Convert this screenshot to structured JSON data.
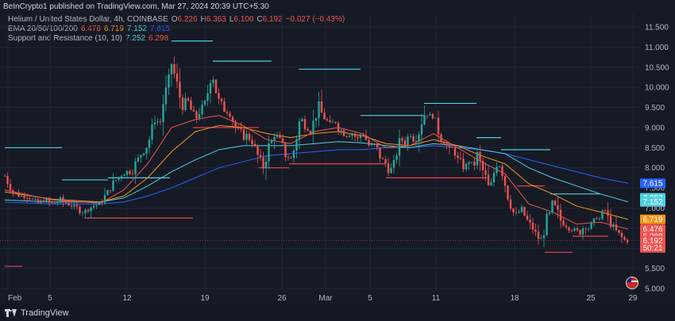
{
  "header": {
    "published": "BeInCrypto1 published on TradingView.com, Mar 27, 2024 20:39 UTC+5:30"
  },
  "legend": {
    "symbol": "Helium / United States Dollar, 4h, COINBASE",
    "o_label": "O",
    "o_value": "6.226",
    "h_label": "H",
    "h_value": "6.363",
    "l_label": "L",
    "l_value": "6.100",
    "c_label": "C",
    "c_value": "6.192",
    "change": "−0.027 (−0.43%)",
    "ema_label": "EMA 20/50/100/200",
    "ema20": "6.476",
    "ema50": "6.719",
    "ema100": "7.152",
    "ema200": "7.615",
    "sr_label": "Support and Resistance (10, 10)",
    "sr_res": "7.252",
    "sr_sup": "6.298"
  },
  "footer": {
    "brand": "TradingView"
  },
  "colors": {
    "up": "#26a69a",
    "down": "#ef5350",
    "ema20": "#ef5350",
    "ema50": "#f7931a",
    "ema100": "#4dd0e1",
    "ema200": "#2962ff",
    "resistance": "#4dd0e1",
    "support": "#e8455a",
    "background": "#161a25",
    "grid": "#1f2431"
  },
  "chart_data": {
    "type": "candlestick",
    "yaxis_ticks": [
      "5.000",
      "5.500",
      "6.000",
      "6.500",
      "7.000",
      "7.500",
      "8.000",
      "8.500",
      "9.000",
      "9.500",
      "10.000",
      "10.500",
      "11.000",
      "11.500"
    ],
    "ylim": [
      5.0,
      11.5
    ],
    "xaxis_ticks": [
      "Feb",
      "5",
      "12",
      "19",
      "26",
      "Mar",
      "5",
      "11",
      "18",
      "25",
      "29"
    ],
    "price_labels": [
      {
        "value": 7.615,
        "text": "7.615",
        "color": "#2962ff"
      },
      {
        "value": 7.252,
        "text": "7.252",
        "color": "#4dd0e1"
      },
      {
        "value": 7.152,
        "text": "7.152",
        "color": "#4dd0e1"
      },
      {
        "value": 6.719,
        "text": "6.719",
        "color": "#f7931a"
      },
      {
        "value": 6.476,
        "text": "6.476",
        "color": "#ef5350"
      },
      {
        "value": 6.298,
        "text": "6.298",
        "color": "#ef5350"
      },
      {
        "value": 6.192,
        "text": "6.192",
        "color": "#ef5350"
      },
      {
        "value": 6.01,
        "text": "50:21",
        "color": "#ef5350"
      }
    ],
    "price_path": [
      [
        0,
        7.8
      ],
      [
        10,
        7.4
      ],
      [
        20,
        7.3
      ],
      [
        30,
        7.3
      ],
      [
        40,
        7.1
      ],
      [
        50,
        7.2
      ],
      [
        60,
        7.1
      ],
      [
        70,
        7.2
      ],
      [
        80,
        7.1
      ],
      [
        90,
        7.0
      ],
      [
        100,
        6.9
      ],
      [
        110,
        7.05
      ],
      [
        120,
        7.1
      ],
      [
        130,
        7.4
      ],
      [
        140,
        7.7
      ],
      [
        150,
        7.9
      ],
      [
        160,
        7.9
      ],
      [
        170,
        8.3
      ],
      [
        180,
        8.6
      ],
      [
        185,
        8.9
      ],
      [
        190,
        9.3
      ],
      [
        195,
        9.0
      ],
      [
        200,
        9.7
      ],
      [
        205,
        10.0
      ],
      [
        210,
        10.6
      ],
      [
        215,
        10.2
      ],
      [
        220,
        9.8
      ],
      [
        225,
        9.5
      ],
      [
        230,
        9.7
      ],
      [
        235,
        9.4
      ],
      [
        240,
        9.2
      ],
      [
        245,
        9.4
      ],
      [
        250,
        9.5
      ],
      [
        255,
        9.8
      ],
      [
        260,
        10.5
      ],
      [
        265,
        10.0
      ],
      [
        270,
        9.6
      ],
      [
        275,
        9.5
      ],
      [
        280,
        9.4
      ],
      [
        285,
        9.3
      ],
      [
        290,
        9.0
      ],
      [
        295,
        8.9
      ],
      [
        300,
        8.8
      ],
      [
        305,
        8.8
      ],
      [
        310,
        8.7
      ],
      [
        315,
        8.5
      ],
      [
        320,
        8.2
      ],
      [
        325,
        8.0
      ],
      [
        330,
        8.4
      ],
      [
        335,
        8.6
      ],
      [
        340,
        8.9
      ],
      [
        345,
        8.7
      ],
      [
        350,
        8.5
      ],
      [
        355,
        8.3
      ],
      [
        360,
        8.2
      ],
      [
        365,
        8.5
      ],
      [
        370,
        9.1
      ],
      [
        375,
        9.2
      ],
      [
        380,
        9.0
      ],
      [
        385,
        8.9
      ],
      [
        390,
        9.2
      ],
      [
        395,
        9.5
      ],
      [
        400,
        9.3
      ],
      [
        405,
        9.2
      ],
      [
        410,
        9.0
      ],
      [
        415,
        9.2
      ],
      [
        420,
        9.0
      ],
      [
        425,
        8.9
      ],
      [
        430,
        8.8
      ],
      [
        435,
        8.9
      ],
      [
        440,
        8.8
      ],
      [
        445,
        8.7
      ],
      [
        450,
        8.9
      ],
      [
        455,
        8.7
      ],
      [
        460,
        8.5
      ],
      [
        465,
        8.6
      ],
      [
        470,
        8.4
      ],
      [
        475,
        8.2
      ],
      [
        480,
        8.1
      ],
      [
        485,
        7.9
      ],
      [
        490,
        8.1
      ],
      [
        495,
        8.5
      ],
      [
        500,
        8.7
      ],
      [
        505,
        8.6
      ],
      [
        510,
        8.9
      ],
      [
        515,
        8.7
      ],
      [
        520,
        8.8
      ],
      [
        525,
        9.2
      ],
      [
        530,
        9.4
      ],
      [
        535,
        9.3
      ],
      [
        540,
        9.3
      ],
      [
        545,
        9.0
      ],
      [
        550,
        8.7
      ],
      [
        555,
        8.6
      ],
      [
        560,
        8.4
      ],
      [
        565,
        8.5
      ],
      [
        570,
        8.2
      ],
      [
        575,
        8.1
      ],
      [
        580,
        8.0
      ],
      [
        585,
        8.2
      ],
      [
        590,
        8.0
      ],
      [
        595,
        8.3
      ],
      [
        600,
        8.0
      ],
      [
        605,
        7.8
      ],
      [
        610,
        7.4
      ],
      [
        615,
        7.8
      ],
      [
        620,
        8.2
      ],
      [
        625,
        8.0
      ],
      [
        630,
        7.6
      ],
      [
        635,
        7.2
      ],
      [
        640,
        6.9
      ],
      [
        645,
        6.8
      ],
      [
        650,
        7.0
      ],
      [
        655,
        6.8
      ],
      [
        660,
        6.6
      ],
      [
        665,
        6.5
      ],
      [
        670,
        6.3
      ],
      [
        675,
        6.2
      ],
      [
        680,
        6.5
      ],
      [
        685,
        6.8
      ],
      [
        690,
        7.1
      ],
      [
        695,
        6.9
      ],
      [
        700,
        6.7
      ],
      [
        705,
        6.6
      ],
      [
        710,
        6.5
      ],
      [
        715,
        6.5
      ],
      [
        720,
        6.4
      ],
      [
        725,
        6.4
      ],
      [
        730,
        6.6
      ],
      [
        735,
        6.5
      ],
      [
        740,
        6.6
      ],
      [
        745,
        6.8
      ],
      [
        750,
        6.7
      ],
      [
        755,
        7.0
      ],
      [
        760,
        6.7
      ],
      [
        765,
        6.6
      ],
      [
        770,
        6.4
      ],
      [
        775,
        6.3
      ],
      [
        780,
        6.2
      ],
      [
        785,
        6.192
      ]
    ],
    "ema20": [
      [
        0,
        7.45
      ],
      [
        60,
        7.2
      ],
      [
        120,
        7.12
      ],
      [
        150,
        7.45
      ],
      [
        180,
        8.1
      ],
      [
        210,
        9.0
      ],
      [
        240,
        9.2
      ],
      [
        270,
        9.3
      ],
      [
        300,
        9.05
      ],
      [
        330,
        8.7
      ],
      [
        360,
        8.6
      ],
      [
        390,
        8.9
      ],
      [
        420,
        9.0
      ],
      [
        450,
        8.85
      ],
      [
        480,
        8.5
      ],
      [
        510,
        8.55
      ],
      [
        540,
        8.85
      ],
      [
        570,
        8.5
      ],
      [
        600,
        8.15
      ],
      [
        630,
        7.85
      ],
      [
        660,
        7.1
      ],
      [
        690,
        6.9
      ],
      [
        720,
        6.6
      ],
      [
        750,
        6.65
      ],
      [
        785,
        6.476
      ]
    ],
    "ema50": [
      [
        0,
        7.4
      ],
      [
        60,
        7.22
      ],
      [
        120,
        7.15
      ],
      [
        150,
        7.3
      ],
      [
        180,
        7.75
      ],
      [
        210,
        8.4
      ],
      [
        240,
        8.9
      ],
      [
        270,
        9.05
      ],
      [
        300,
        9.0
      ],
      [
        330,
        8.85
      ],
      [
        360,
        8.75
      ],
      [
        390,
        8.85
      ],
      [
        420,
        8.9
      ],
      [
        450,
        8.8
      ],
      [
        480,
        8.6
      ],
      [
        510,
        8.55
      ],
      [
        540,
        8.7
      ],
      [
        570,
        8.55
      ],
      [
        600,
        8.3
      ],
      [
        630,
        8.1
      ],
      [
        660,
        7.6
      ],
      [
        690,
        7.35
      ],
      [
        720,
        7.05
      ],
      [
        750,
        6.9
      ],
      [
        785,
        6.719
      ]
    ],
    "ema100": [
      [
        0,
        7.2
      ],
      [
        60,
        7.15
      ],
      [
        120,
        7.15
      ],
      [
        150,
        7.25
      ],
      [
        180,
        7.55
      ],
      [
        210,
        7.9
      ],
      [
        240,
        8.2
      ],
      [
        270,
        8.45
      ],
      [
        300,
        8.55
      ],
      [
        330,
        8.55
      ],
      [
        360,
        8.55
      ],
      [
        390,
        8.6
      ],
      [
        420,
        8.65
      ],
      [
        450,
        8.62
      ],
      [
        480,
        8.55
      ],
      [
        510,
        8.5
      ],
      [
        540,
        8.6
      ],
      [
        570,
        8.55
      ],
      [
        600,
        8.45
      ],
      [
        630,
        8.35
      ],
      [
        660,
        8.0
      ],
      [
        690,
        7.75
      ],
      [
        720,
        7.55
      ],
      [
        750,
        7.35
      ],
      [
        785,
        7.152
      ]
    ],
    "ema200": [
      [
        0,
        7.15
      ],
      [
        60,
        7.1
      ],
      [
        120,
        7.1
      ],
      [
        150,
        7.15
      ],
      [
        180,
        7.3
      ],
      [
        210,
        7.5
      ],
      [
        240,
        7.75
      ],
      [
        270,
        8.0
      ],
      [
        300,
        8.15
      ],
      [
        330,
        8.3
      ],
      [
        360,
        8.35
      ],
      [
        390,
        8.4
      ],
      [
        420,
        8.45
      ],
      [
        450,
        8.45
      ],
      [
        480,
        8.5
      ],
      [
        510,
        8.5
      ],
      [
        540,
        8.55
      ],
      [
        570,
        8.5
      ],
      [
        600,
        8.45
      ],
      [
        630,
        8.35
      ],
      [
        660,
        8.2
      ],
      [
        690,
        8.05
      ],
      [
        720,
        7.9
      ],
      [
        750,
        7.75
      ],
      [
        785,
        7.615
      ]
    ],
    "resistance_lines": [
      {
        "x1": 0,
        "x2": 72,
        "y": 8.5
      },
      {
        "x1": 72,
        "x2": 130,
        "y": 7.7
      },
      {
        "x1": 130,
        "x2": 208,
        "y": 7.75
      },
      {
        "x1": 210,
        "x2": 262,
        "y": 11.15
      },
      {
        "x1": 262,
        "x2": 336,
        "y": 10.65
      },
      {
        "x1": 370,
        "x2": 448,
        "y": 10.45
      },
      {
        "x1": 448,
        "x2": 528,
        "y": 9.3
      },
      {
        "x1": 528,
        "x2": 594,
        "y": 9.6
      },
      {
        "x1": 594,
        "x2": 625,
        "y": 8.75
      },
      {
        "x1": 625,
        "x2": 687,
        "y": 8.45
      },
      {
        "x1": 687,
        "x2": 750,
        "y": 7.35
      }
    ],
    "support_lines": [
      {
        "x1": 0,
        "x2": 22,
        "y": 5.55
      },
      {
        "x1": 100,
        "x2": 237,
        "y": 6.75
      },
      {
        "x1": 237,
        "x2": 320,
        "y": 9.0
      },
      {
        "x1": 320,
        "x2": 358,
        "y": 8.0
      },
      {
        "x1": 358,
        "x2": 480,
        "y": 8.1
      },
      {
        "x1": 480,
        "x2": 607,
        "y": 7.75
      },
      {
        "x1": 645,
        "x2": 680,
        "y": 7.55
      },
      {
        "x1": 680,
        "x2": 715,
        "y": 5.9
      },
      {
        "x1": 715,
        "x2": 760,
        "y": 6.3
      }
    ]
  }
}
